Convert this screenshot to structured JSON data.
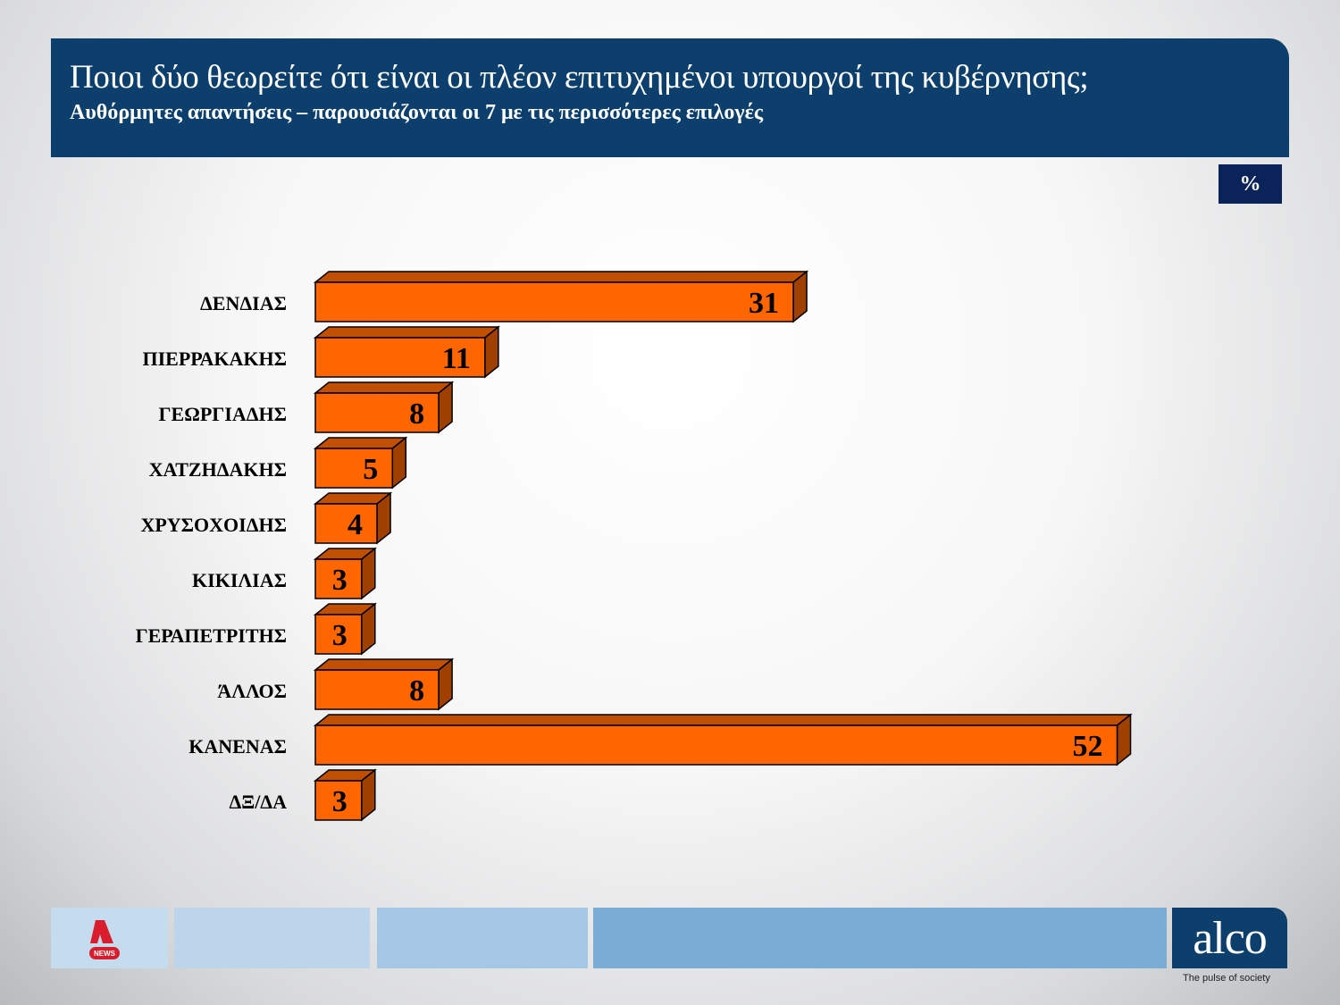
{
  "header": {
    "title": "Ποιοι δύο θεωρείτε ότι είναι οι πλέον επιτυχημένοι υπουργοί της κυβέρνησης;",
    "subtitle": "Αυθόρμητες απαντήσεις – παρουσιάζονται οι 7 με τις περισσότερες επιλογές"
  },
  "unit_label": "%",
  "chart_data": {
    "type": "bar",
    "orientation": "horizontal",
    "style": "3d",
    "categories": [
      "ΔΕΝΔΙΑΣ",
      "ΠΙΕΡΡΑΚΑΚΗΣ",
      "ΓΕΩΡΓΙΑΔΗΣ",
      "ΧΑΤΖΗΔΑΚΗΣ",
      "ΧΡΥΣΟΧΟΙΔΗΣ",
      "ΚΙΚΙΛΙΑΣ",
      "ΓΕΡΑΠΕΤΡΙΤΗΣ",
      "ΆΛΛΟΣ",
      "ΚΑΝΕΝΑΣ",
      "ΔΞ/ΔΑ"
    ],
    "values": [
      31,
      11,
      8,
      5,
      4,
      3,
      3,
      8,
      52,
      3
    ],
    "colors": {
      "front": "#ff6600",
      "top": "#c05000",
      "side": "#a04000"
    },
    "grid": false
  },
  "footer": {
    "logo_left": "ALPHA NEWS",
    "logo_right": "alco",
    "tagline": "The pulse of society",
    "colors": [
      "#c5dcee",
      "#bdd5ea",
      "#a3c7e5",
      "#79add6"
    ]
  }
}
